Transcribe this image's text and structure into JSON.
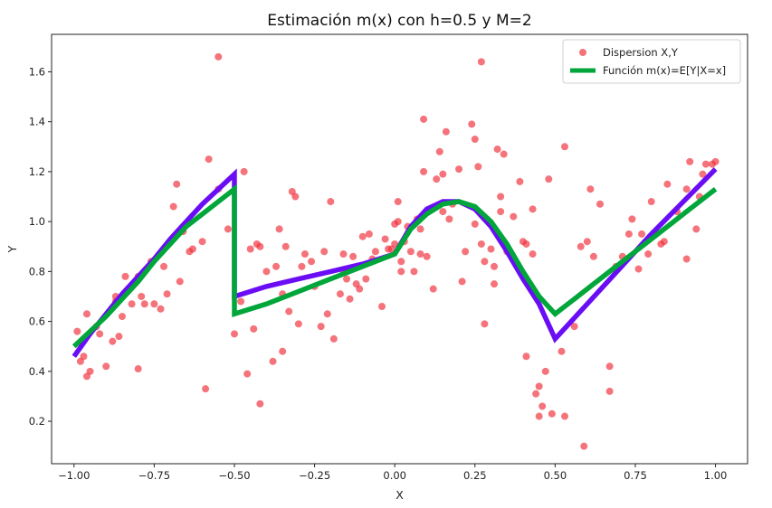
{
  "chart_data": {
    "type": "scatter",
    "title": "Estimación m(x) con h=0.5 y M=2",
    "xlabel": "X",
    "ylabel": "Y",
    "xlim": [
      -1.07,
      1.1
    ],
    "ylim": [
      0.03,
      1.75
    ],
    "xticks": [
      -1.0,
      -0.75,
      -0.5,
      -0.25,
      0.0,
      0.25,
      0.5,
      0.75,
      1.0
    ],
    "xtick_labels": [
      "−1.00",
      "−0.75",
      "−0.50",
      "−0.25",
      "0.00",
      "0.25",
      "0.50",
      "0.75",
      "1.00"
    ],
    "yticks": [
      0.2,
      0.4,
      0.6,
      0.8,
      1.0,
      1.2,
      1.4,
      1.6
    ],
    "ytick_labels": [
      "0.2",
      "0.4",
      "0.6",
      "0.8",
      "1.0",
      "1.2",
      "1.4",
      "1.6"
    ],
    "grid": false,
    "legend": {
      "position": "top-right",
      "entries": [
        {
          "label": "Dispersion X,Y",
          "kind": "marker",
          "color": "#f0303c"
        },
        {
          "label": "Función m(x)=E[Y|X=x]",
          "kind": "line",
          "color": "#00a63a"
        }
      ]
    },
    "series": [
      {
        "name": "Dispersion X,Y",
        "type": "scatter",
        "color": "#f0303c",
        "points": [
          [
            -0.99,
            0.56
          ],
          [
            -0.98,
            0.44
          ],
          [
            -0.97,
            0.46
          ],
          [
            -0.96,
            0.63
          ],
          [
            -0.96,
            0.38
          ],
          [
            -0.95,
            0.4
          ],
          [
            -0.93,
            0.58
          ],
          [
            -0.92,
            0.55
          ],
          [
            -0.9,
            0.42
          ],
          [
            -0.88,
            0.52
          ],
          [
            -0.87,
            0.7
          ],
          [
            -0.87,
            0.68
          ],
          [
            -0.86,
            0.54
          ],
          [
            -0.85,
            0.62
          ],
          [
            -0.84,
            0.78
          ],
          [
            -0.83,
            0.73
          ],
          [
            -0.82,
            0.67
          ],
          [
            -0.81,
            0.76
          ],
          [
            -0.8,
            0.78
          ],
          [
            -0.79,
            0.7
          ],
          [
            -0.8,
            0.41
          ],
          [
            -0.78,
            0.67
          ],
          [
            -0.76,
            0.84
          ],
          [
            -0.75,
            0.67
          ],
          [
            -0.73,
            0.65
          ],
          [
            -0.72,
            0.82
          ],
          [
            -0.71,
            0.71
          ],
          [
            -0.69,
            1.06
          ],
          [
            -0.68,
            1.15
          ],
          [
            -0.67,
            0.76
          ],
          [
            -0.66,
            0.96
          ],
          [
            -0.66,
            0.97
          ],
          [
            -0.64,
            0.88
          ],
          [
            -0.63,
            0.89
          ],
          [
            -0.6,
            0.92
          ],
          [
            -0.59,
            0.33
          ],
          [
            -0.58,
            1.25
          ],
          [
            -0.55,
            1.13
          ],
          [
            -0.55,
            1.66
          ],
          [
            -0.52,
            0.97
          ],
          [
            -0.5,
            0.55
          ],
          [
            -0.48,
            0.68
          ],
          [
            -0.47,
            1.2
          ],
          [
            -0.46,
            0.39
          ],
          [
            -0.45,
            0.89
          ],
          [
            -0.44,
            0.57
          ],
          [
            -0.43,
            0.91
          ],
          [
            -0.42,
            0.9
          ],
          [
            -0.42,
            0.27
          ],
          [
            -0.4,
            0.8
          ],
          [
            -0.38,
            0.44
          ],
          [
            -0.37,
            0.82
          ],
          [
            -0.36,
            0.97
          ],
          [
            -0.35,
            0.71
          ],
          [
            -0.35,
            0.48
          ],
          [
            -0.34,
            0.9
          ],
          [
            -0.33,
            0.64
          ],
          [
            -0.32,
            1.12
          ],
          [
            -0.31,
            1.1
          ],
          [
            -0.3,
            0.59
          ],
          [
            -0.29,
            0.82
          ],
          [
            -0.28,
            0.87
          ],
          [
            -0.26,
            0.84
          ],
          [
            -0.25,
            0.74
          ],
          [
            -0.23,
            0.58
          ],
          [
            -0.22,
            0.88
          ],
          [
            -0.21,
            0.63
          ],
          [
            -0.2,
            1.08
          ],
          [
            -0.19,
            0.53
          ],
          [
            -0.17,
            0.71
          ],
          [
            -0.16,
            0.87
          ],
          [
            -0.16,
            0.8
          ],
          [
            -0.15,
            0.77
          ],
          [
            -0.14,
            0.69
          ],
          [
            -0.13,
            0.86
          ],
          [
            -0.12,
            0.75
          ],
          [
            -0.11,
            0.73
          ],
          [
            -0.1,
            0.94
          ],
          [
            -0.09,
            0.77
          ],
          [
            -0.08,
            0.95
          ],
          [
            -0.07,
            0.85
          ],
          [
            -0.06,
            0.88
          ],
          [
            -0.04,
            0.66
          ],
          [
            -0.03,
            0.93
          ],
          [
            -0.02,
            0.89
          ],
          [
            -0.01,
            0.89
          ],
          [
            0.0,
            0.91
          ],
          [
            0.0,
            0.99
          ],
          [
            0.01,
            1.08
          ],
          [
            0.01,
            1.0
          ],
          [
            0.02,
            0.84
          ],
          [
            0.02,
            0.8
          ],
          [
            0.03,
            0.92
          ],
          [
            0.04,
            0.98
          ],
          [
            0.05,
            0.88
          ],
          [
            0.06,
            0.8
          ],
          [
            0.07,
            1.01
          ],
          [
            0.08,
            0.97
          ],
          [
            0.08,
            0.87
          ],
          [
            0.09,
            1.41
          ],
          [
            0.09,
            1.2
          ],
          [
            0.1,
            0.86
          ],
          [
            0.12,
            0.73
          ],
          [
            0.13,
            1.17
          ],
          [
            0.14,
            1.28
          ],
          [
            0.15,
            1.19
          ],
          [
            0.15,
            1.04
          ],
          [
            0.16,
            1.36
          ],
          [
            0.17,
            1.01
          ],
          [
            0.18,
            1.07
          ],
          [
            0.2,
            1.21
          ],
          [
            0.21,
            0.76
          ],
          [
            0.22,
            0.88
          ],
          [
            0.24,
            1.39
          ],
          [
            0.25,
            1.33
          ],
          [
            0.25,
            0.99
          ],
          [
            0.26,
            1.22
          ],
          [
            0.27,
            1.64
          ],
          [
            0.27,
            0.91
          ],
          [
            0.28,
            0.84
          ],
          [
            0.28,
            0.59
          ],
          [
            0.3,
            0.89
          ],
          [
            0.31,
            0.82
          ],
          [
            0.31,
            0.75
          ],
          [
            0.32,
            1.29
          ],
          [
            0.33,
            1.1
          ],
          [
            0.34,
            1.27
          ],
          [
            0.35,
            0.88
          ],
          [
            0.37,
            1.02
          ],
          [
            0.39,
            1.16
          ],
          [
            0.4,
            0.92
          ],
          [
            0.41,
            0.91
          ],
          [
            0.41,
            0.46
          ],
          [
            0.43,
            1.05
          ],
          [
            0.43,
            0.87
          ],
          [
            0.44,
            0.31
          ],
          [
            0.45,
            0.34
          ],
          [
            0.46,
            0.26
          ],
          [
            0.47,
            0.4
          ],
          [
            0.48,
            1.17
          ],
          [
            0.49,
            0.23
          ],
          [
            0.52,
            0.48
          ],
          [
            0.53,
            1.3
          ],
          [
            0.53,
            0.22
          ],
          [
            0.56,
            0.58
          ],
          [
            0.58,
            0.9
          ],
          [
            0.59,
            0.1
          ],
          [
            0.6,
            0.92
          ],
          [
            0.61,
            1.13
          ],
          [
            0.62,
            0.86
          ],
          [
            0.64,
            1.07
          ],
          [
            0.67,
            0.42
          ],
          [
            0.67,
            0.32
          ],
          [
            0.69,
            0.82
          ],
          [
            0.71,
            0.86
          ],
          [
            0.73,
            0.95
          ],
          [
            0.74,
            1.01
          ],
          [
            0.76,
            0.81
          ],
          [
            0.77,
            0.95
          ],
          [
            0.79,
            0.87
          ],
          [
            0.8,
            1.08
          ],
          [
            0.83,
            0.91
          ],
          [
            0.84,
            0.92
          ],
          [
            0.85,
            1.15
          ],
          [
            0.88,
            1.04
          ],
          [
            0.91,
            0.85
          ],
          [
            0.91,
            1.13
          ],
          [
            0.92,
            1.24
          ],
          [
            0.94,
            0.97
          ],
          [
            0.95,
            1.1
          ],
          [
            0.96,
            1.19
          ],
          [
            0.97,
            1.23
          ],
          [
            0.99,
            1.23
          ],
          [
            1.0,
            1.24
          ],
          [
            0.33,
            1.04
          ],
          [
            0.45,
            0.22
          ]
        ]
      },
      {
        "name": "",
        "type": "line",
        "color": "#6a0df5",
        "points": [
          [
            -1.0,
            0.46
          ],
          [
            -0.95,
            0.55
          ],
          [
            -0.9,
            0.63
          ],
          [
            -0.85,
            0.71
          ],
          [
            -0.8,
            0.78
          ],
          [
            -0.75,
            0.85
          ],
          [
            -0.7,
            0.93
          ],
          [
            -0.65,
            1.0
          ],
          [
            -0.6,
            1.07
          ],
          [
            -0.55,
            1.13
          ],
          [
            -0.5,
            1.19
          ],
          [
            -0.5,
            0.7
          ],
          [
            -0.4,
            0.74
          ],
          [
            -0.3,
            0.77
          ],
          [
            -0.2,
            0.8
          ],
          [
            -0.1,
            0.83
          ],
          [
            0.0,
            0.87
          ],
          [
            0.05,
            0.98
          ],
          [
            0.1,
            1.05
          ],
          [
            0.15,
            1.08
          ],
          [
            0.2,
            1.08
          ],
          [
            0.25,
            1.05
          ],
          [
            0.3,
            0.98
          ],
          [
            0.35,
            0.88
          ],
          [
            0.4,
            0.77
          ],
          [
            0.45,
            0.67
          ],
          [
            0.5,
            0.53
          ],
          [
            0.6,
            0.67
          ],
          [
            0.7,
            0.81
          ],
          [
            0.8,
            0.95
          ],
          [
            0.9,
            1.08
          ],
          [
            1.0,
            1.21
          ]
        ]
      },
      {
        "name": "Función m(x)=E[Y|X=x]",
        "type": "line",
        "color": "#00a63a",
        "points": [
          [
            -1.0,
            0.5
          ],
          [
            -0.95,
            0.56
          ],
          [
            -0.9,
            0.62
          ],
          [
            -0.85,
            0.69
          ],
          [
            -0.8,
            0.76
          ],
          [
            -0.75,
            0.84
          ],
          [
            -0.7,
            0.91
          ],
          [
            -0.65,
            0.98
          ],
          [
            -0.6,
            1.03
          ],
          [
            -0.55,
            1.08
          ],
          [
            -0.5,
            1.13
          ],
          [
            -0.5,
            0.63
          ],
          [
            -0.4,
            0.67
          ],
          [
            -0.3,
            0.72
          ],
          [
            -0.2,
            0.77
          ],
          [
            -0.1,
            0.82
          ],
          [
            0.0,
            0.87
          ],
          [
            0.05,
            0.97
          ],
          [
            0.1,
            1.03
          ],
          [
            0.15,
            1.07
          ],
          [
            0.2,
            1.08
          ],
          [
            0.25,
            1.06
          ],
          [
            0.3,
            1.0
          ],
          [
            0.35,
            0.91
          ],
          [
            0.4,
            0.8
          ],
          [
            0.45,
            0.7
          ],
          [
            0.5,
            0.63
          ],
          [
            0.6,
            0.73
          ],
          [
            0.7,
            0.83
          ],
          [
            0.8,
            0.93
          ],
          [
            0.9,
            1.03
          ],
          [
            1.0,
            1.13
          ]
        ]
      }
    ]
  }
}
